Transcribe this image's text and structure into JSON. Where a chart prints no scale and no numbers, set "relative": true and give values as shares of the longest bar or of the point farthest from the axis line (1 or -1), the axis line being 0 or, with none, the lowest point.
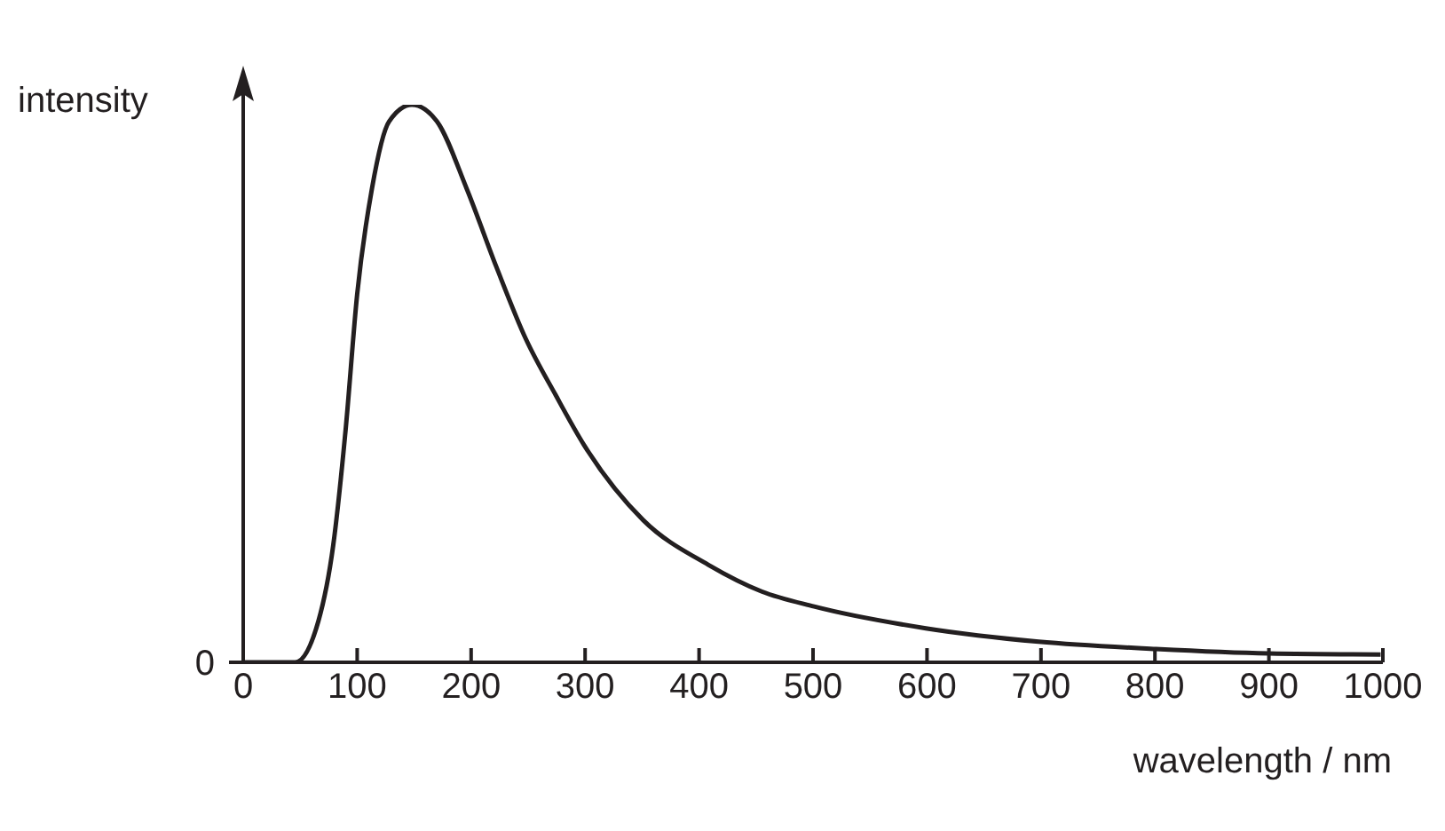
{
  "chart_data": {
    "type": "line",
    "relative": true,
    "xlabel": "wavelength / nm",
    "ylabel": "intensity",
    "x": [
      0,
      45.6,
      66,
      79,
      90,
      100,
      113,
      128,
      148,
      170,
      196,
      222,
      248,
      274,
      299,
      351,
      408,
      455,
      501,
      599,
      698,
      801,
      900,
      998
    ],
    "series": [
      {
        "color": "#231f20",
        "values": [
          0,
          0,
          0.074,
          0.21,
          0.42,
          0.66,
          0.85,
          0.97,
          1,
          0.97,
          0.85,
          0.71,
          0.58,
          0.48,
          0.39,
          0.255,
          0.175,
          0.127,
          0.1,
          0.061,
          0.037,
          0.024,
          0.016,
          0.014
        ]
      }
    ],
    "xlim": [
      0,
      1000
    ],
    "xticks": [
      0,
      100,
      200,
      300,
      400,
      500,
      600,
      700,
      800,
      900,
      1000
    ],
    "annotations": [
      {
        "text": "0",
        "x": 0,
        "y": 0
      }
    ],
    "marker": "none",
    "line_style": "solid",
    "grid": false,
    "legend": false
  }
}
